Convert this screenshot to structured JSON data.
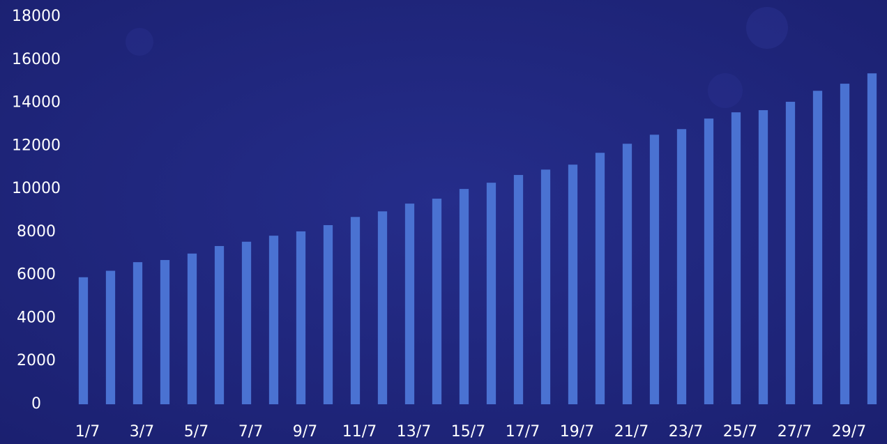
{
  "chart_data": {
    "type": "bar",
    "categories": [
      "1/7",
      null,
      "3/7",
      null,
      "5/7",
      null,
      "7/7",
      null,
      "9/7",
      null,
      "11/7",
      null,
      "13/7",
      null,
      "15/7",
      null,
      "17/7",
      null,
      "19/7",
      null,
      "21/7",
      null,
      "23/7",
      null,
      "25/7",
      null,
      "27/7",
      null,
      "29/7",
      null
    ],
    "values": [
      5900,
      6200,
      6600,
      6700,
      7000,
      7350,
      7550,
      7830,
      8030,
      8320,
      8700,
      8960,
      9320,
      9550,
      10000,
      10290,
      10650,
      10900,
      11130,
      11680,
      12100,
      12520,
      12780,
      13270,
      13560,
      13660,
      14050,
      14560,
      14890,
      15370
    ],
    "color": "#4a72d2",
    "ylim": [
      0,
      18000
    ],
    "yticks": [
      0,
      2000,
      4000,
      6000,
      8000,
      10000,
      12000,
      14000,
      16000,
      18000
    ],
    "grid": false
  }
}
